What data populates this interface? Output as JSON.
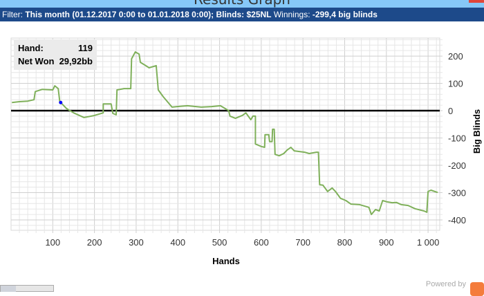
{
  "window": {
    "title": "Results Graph"
  },
  "filter": {
    "label": "Filter:",
    "value": "This month (01.12.2017 0:00 to 01.01.2018 0:00); Blinds: $25NL",
    "winnings_label": "Winnings:",
    "winnings_value": "-299,4 big blinds"
  },
  "tooltip": {
    "hand_label": "Hand:",
    "hand_value": "119",
    "net_label": "Net Won",
    "net_value": "29,92bb"
  },
  "footer": {
    "powered_by": "Powered by"
  },
  "colors": {
    "line": "#7fb05a",
    "zero_line": "#000000",
    "marker": "#0000ff",
    "titlebar": "#86c8f8",
    "filterbar": "#1d4a8a"
  },
  "chart_data": {
    "type": "line",
    "xlabel": "Hands",
    "ylabel": "Big Blinds",
    "xlim": [
      0,
      1028
    ],
    "ylim": [
      -438,
      266
    ],
    "grid": true,
    "x_ticks": [
      100,
      200,
      300,
      400,
      500,
      600,
      700,
      800,
      900,
      1000
    ],
    "x_tick_labels": [
      "100",
      "200",
      "300",
      "400",
      "500",
      "600",
      "700",
      "800",
      "900",
      "1 000"
    ],
    "y_ticks": [
      200,
      100,
      0,
      -100,
      -200,
      -300,
      -400
    ],
    "y_tick_labels": [
      "200",
      "100",
      "0",
      "-100",
      "-200",
      "-300",
      "-400"
    ],
    "highlight": {
      "x": 119,
      "y": 29.92
    },
    "x": [
      0,
      2,
      20,
      40,
      55,
      58,
      75,
      100,
      105,
      113,
      117,
      119,
      133,
      150,
      175,
      199,
      221,
      221,
      240,
      244,
      252,
      254,
      271,
      287,
      289,
      298,
      307,
      310,
      323,
      331,
      348,
      353,
      365,
      386,
      398,
      423,
      456,
      481,
      502,
      522,
      525,
      538,
      555,
      563,
      575,
      580,
      586,
      586,
      600,
      608,
      609,
      618,
      620,
      626,
      627,
      631,
      633,
      643,
      654,
      662,
      671,
      679,
      704,
      715,
      732,
      737,
      740,
      748,
      759,
      770,
      778,
      790,
      803,
      815,
      836,
      858,
      864,
      874,
      883,
      891,
      902,
      914,
      924,
      936,
      952,
      969,
      990,
      997,
      1000,
      1007,
      1023
    ],
    "y": [
      0,
      30,
      33,
      35,
      40,
      70,
      78,
      76,
      91,
      81,
      30,
      29.92,
      8,
      -8,
      -25,
      -18,
      -8,
      25,
      25,
      -10,
      -15,
      76,
      81,
      81,
      190,
      215,
      207,
      177,
      165,
      157,
      165,
      76,
      51,
      13,
      15,
      18,
      13,
      15,
      18,
      0,
      -20,
      -28,
      -17,
      -8,
      -33,
      -20,
      -20,
      -122,
      -131,
      -134,
      -88,
      -88,
      -113,
      -113,
      -68,
      -68,
      -160,
      -165,
      -157,
      -144,
      -134,
      -147,
      -152,
      -157,
      -152,
      -152,
      -271,
      -273,
      -296,
      -283,
      -296,
      -321,
      -329,
      -342,
      -344,
      -354,
      -380,
      -362,
      -367,
      -329,
      -334,
      -337,
      -336,
      -344,
      -347,
      -359,
      -367,
      -372,
      -296,
      -291,
      -299.4
    ]
  }
}
